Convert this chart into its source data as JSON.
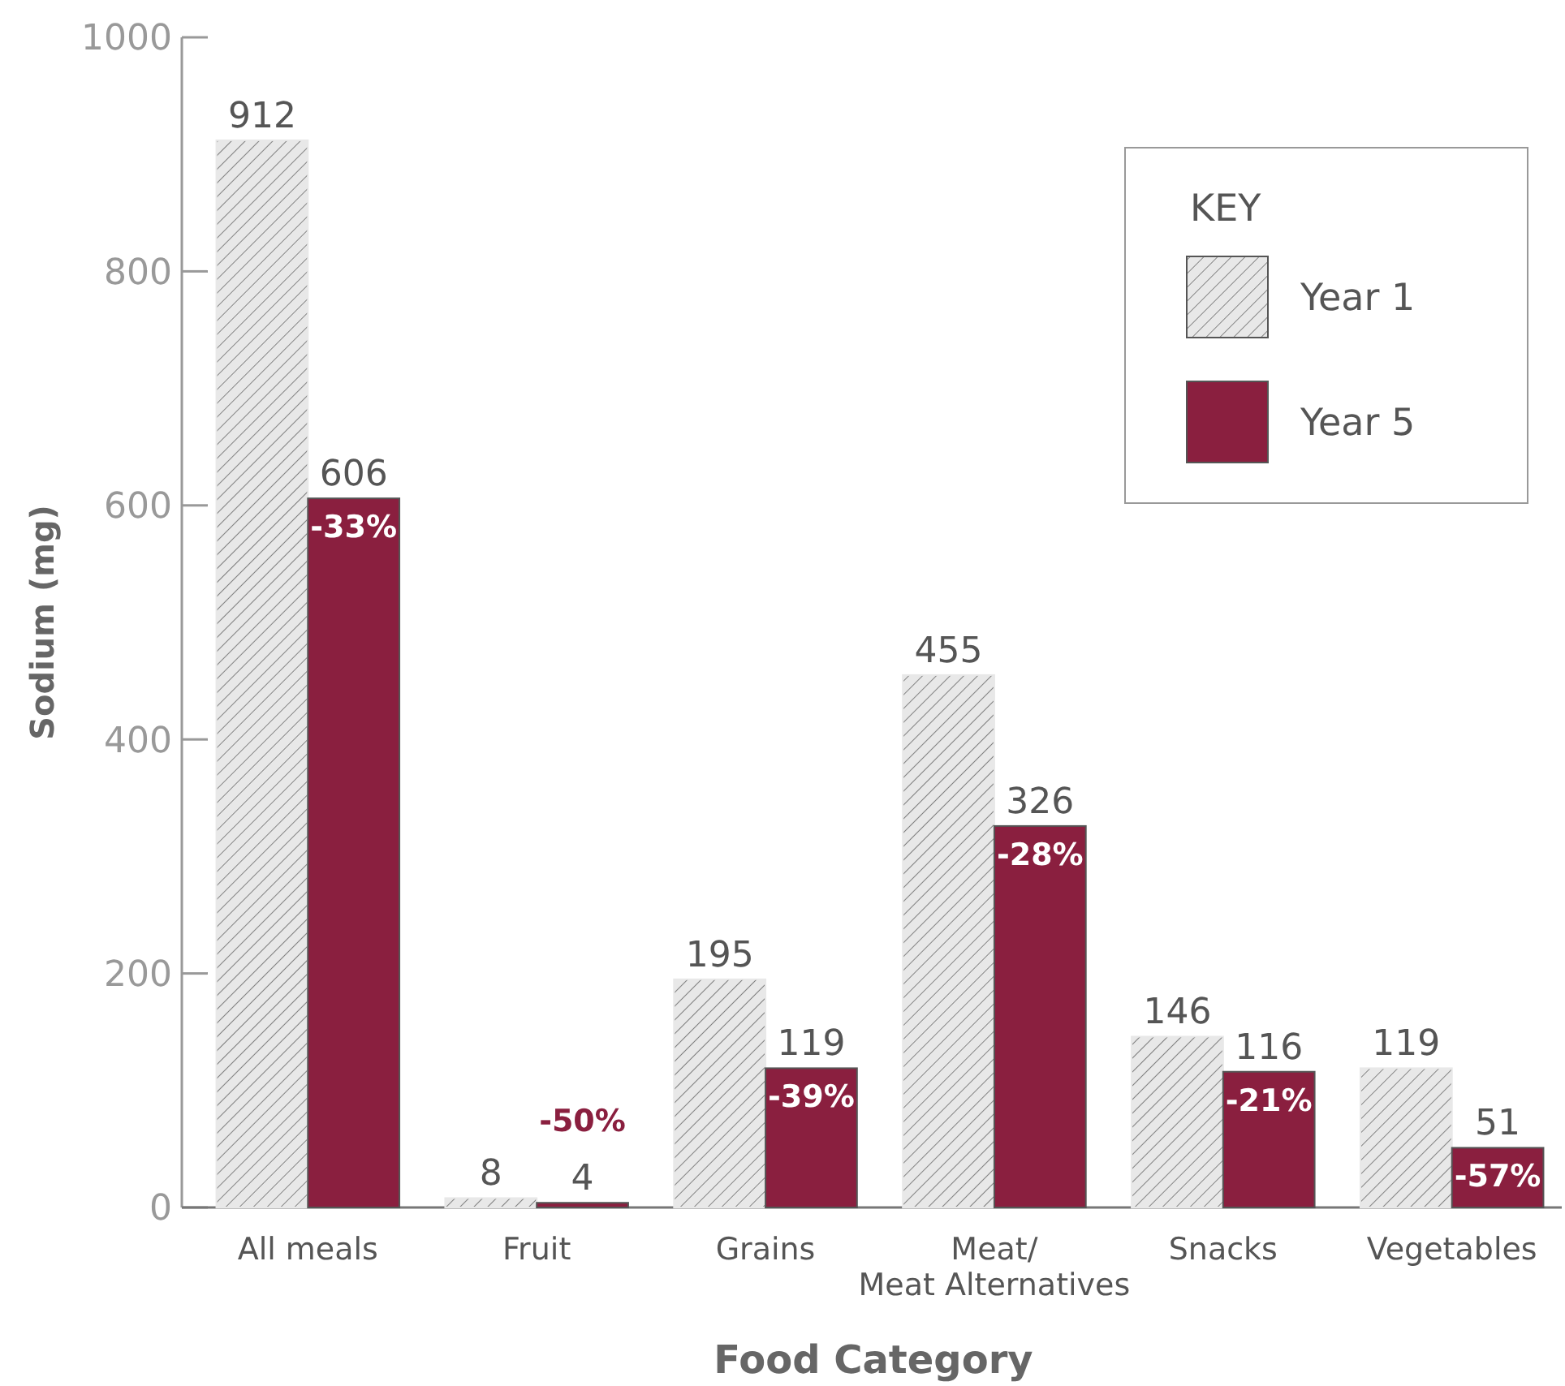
{
  "chart_data": {
    "type": "bar",
    "xlabel": "Food Category",
    "ylabel": "Sodium (mg)",
    "legend_title": "KEY",
    "legend": "top right",
    "categories": [
      "All meals",
      "Fruit",
      "Grains",
      "Meat/Meat Alternatives",
      "Snacks",
      "Vegetables"
    ],
    "series": [
      {
        "name": "Year 1",
        "color": "#e8e8e8",
        "values": [
          912,
          8,
          195,
          455,
          146,
          119
        ]
      },
      {
        "name": "Year 5",
        "color": "#8a1f3f",
        "values": [
          606,
          4,
          119,
          326,
          116,
          51
        ]
      }
    ],
    "ylim": [
      0,
      1000
    ],
    "yticks": [
      0,
      200,
      400,
      600,
      800,
      1000
    ],
    "grid": false,
    "data_labels": true,
    "annotations": [
      {
        "text": "-33%",
        "x": "All meals",
        "y": 606
      },
      {
        "text": "-50%",
        "x": "Fruit",
        "y": 4
      },
      {
        "text": "-39%",
        "x": "Grains",
        "y": 119
      },
      {
        "text": "-28%",
        "x": "Meat/Meat Alternatives",
        "y": 326
      },
      {
        "text": "-21%",
        "x": "Snacks",
        "y": 116
      },
      {
        "text": "-57%",
        "x": "Vegetables",
        "y": 51
      }
    ]
  }
}
